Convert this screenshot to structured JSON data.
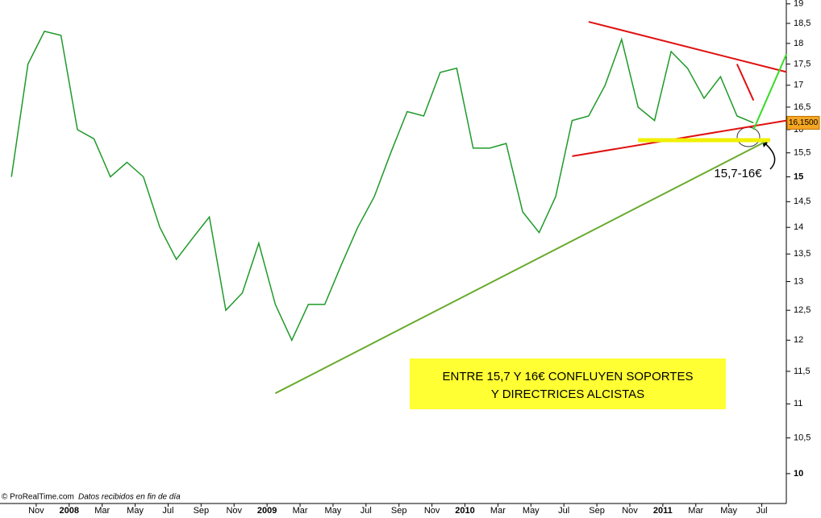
{
  "chart_data": {
    "type": "line",
    "log_scale": true,
    "color": "#1f9a2a",
    "x": [
      "2007-09",
      "2007-10",
      "2007-11",
      "2007-12",
      "2008-01",
      "2008-02",
      "2008-03",
      "2008-04",
      "2008-05",
      "2008-06",
      "2008-07",
      "2008-08",
      "2008-09",
      "2008-10",
      "2008-11",
      "2008-12",
      "2009-01",
      "2009-02",
      "2009-03",
      "2009-04",
      "2009-05",
      "2009-06",
      "2009-07",
      "2009-08",
      "2009-09",
      "2009-10",
      "2009-11",
      "2009-12",
      "2010-01",
      "2010-02",
      "2010-03",
      "2010-04",
      "2010-05",
      "2010-06",
      "2010-07",
      "2010-08",
      "2010-09",
      "2010-10",
      "2010-11",
      "2010-12",
      "2011-01",
      "2011-02",
      "2011-03",
      "2011-04",
      "2011-05",
      "2011-06"
    ],
    "values": [
      15.0,
      17.5,
      18.3,
      18.2,
      16.0,
      15.8,
      15.0,
      15.3,
      15.0,
      14.0,
      13.4,
      13.8,
      14.2,
      12.5,
      12.8,
      13.7,
      12.6,
      12.0,
      12.6,
      12.6,
      13.3,
      14.0,
      14.6,
      15.5,
      16.4,
      16.3,
      17.3,
      17.4,
      15.6,
      15.6,
      15.7,
      14.3,
      13.9,
      14.6,
      16.2,
      16.3,
      17.0,
      18.1,
      16.5,
      16.2,
      17.8,
      17.4,
      16.7,
      17.2,
      16.3,
      16.15
    ],
    "xlim": [
      "2007-09",
      "2011-08"
    ],
    "xticks": [
      {
        "value": "2007-11",
        "label": "Nov"
      },
      {
        "value": "2008-01",
        "label": "2008"
      },
      {
        "value": "2008-03",
        "label": "Mar"
      },
      {
        "value": "2008-05",
        "label": "May"
      },
      {
        "value": "2008-07",
        "label": "Jul"
      },
      {
        "value": "2008-09",
        "label": "Sep"
      },
      {
        "value": "2008-11",
        "label": "Nov"
      },
      {
        "value": "2009-01",
        "label": "2009"
      },
      {
        "value": "2009-03",
        "label": "Mar"
      },
      {
        "value": "2009-05",
        "label": "May"
      },
      {
        "value": "2009-07",
        "label": "Jul"
      },
      {
        "value": "2009-09",
        "label": "Sep"
      },
      {
        "value": "2009-11",
        "label": "Nov"
      },
      {
        "value": "2010-01",
        "label": "2010"
      },
      {
        "value": "2010-03",
        "label": "Mar"
      },
      {
        "value": "2010-05",
        "label": "May"
      },
      {
        "value": "2010-07",
        "label": "Jul"
      },
      {
        "value": "2010-09",
        "label": "Sep"
      },
      {
        "value": "2010-11",
        "label": "Nov"
      },
      {
        "value": "2011-01",
        "label": "2011"
      },
      {
        "value": "2011-03",
        "label": "Mar"
      },
      {
        "value": "2011-05",
        "label": "May"
      },
      {
        "value": "2011-07",
        "label": "Jul"
      }
    ],
    "ylim": [
      9.6,
      19.1
    ],
    "yticks": [
      10,
      {
        "value": 10.5,
        "label": "10,5"
      },
      11,
      {
        "value": 11.5,
        "label": "11,5"
      },
      12,
      {
        "value": 12.5,
        "label": "12,5"
      },
      13,
      {
        "value": 13.5,
        "label": "13,5"
      },
      14,
      {
        "value": 14.5,
        "label": "14,5"
      },
      15,
      {
        "value": 15.5,
        "label": "15,5"
      },
      16,
      {
        "value": 16.5,
        "label": "16,5"
      },
      17,
      {
        "value": 17.5,
        "label": "17,5"
      },
      18,
      {
        "value": 18.5,
        "label": "18,5"
      },
      19
    ],
    "last_price": {
      "value": 16.15,
      "label": "16,1500"
    },
    "trendlines": [
      {
        "color": "#e01010",
        "x": [
          "2010-08",
          "2011-08"
        ],
        "y": [
          18.54,
          17.31
        ]
      },
      {
        "color": "#e01010",
        "x": [
          "2010-07",
          "2011-08"
        ],
        "y": [
          15.43,
          16.2
        ]
      },
      {
        "color": "#e01010",
        "x": [
          "2011-05",
          "2011-06"
        ],
        "y": [
          17.5,
          16.65
        ]
      },
      {
        "color": "#6aab2e",
        "x": [
          "2009-01",
          "2011-07"
        ],
        "y": [
          11.16,
          15.79
        ]
      },
      {
        "color": "#33dd22",
        "x": [
          "2011-06",
          "2011-08"
        ],
        "y": [
          16.0,
          17.74
        ]
      },
      {
        "color": "#f0f000",
        "x": [
          "2010-11",
          "2011-07"
        ],
        "y": [
          15.77,
          15.77
        ]
      }
    ],
    "annotation": [
      "ENTRE 15,7 Y 16€ CONFLUYEN SOPORTES",
      "Y DIRECTRICES ALCISTAS"
    ],
    "callout": "15,7-16€",
    "footer": [
      "© ProRealTime.com",
      "Datos recibidos en fin de día"
    ]
  }
}
